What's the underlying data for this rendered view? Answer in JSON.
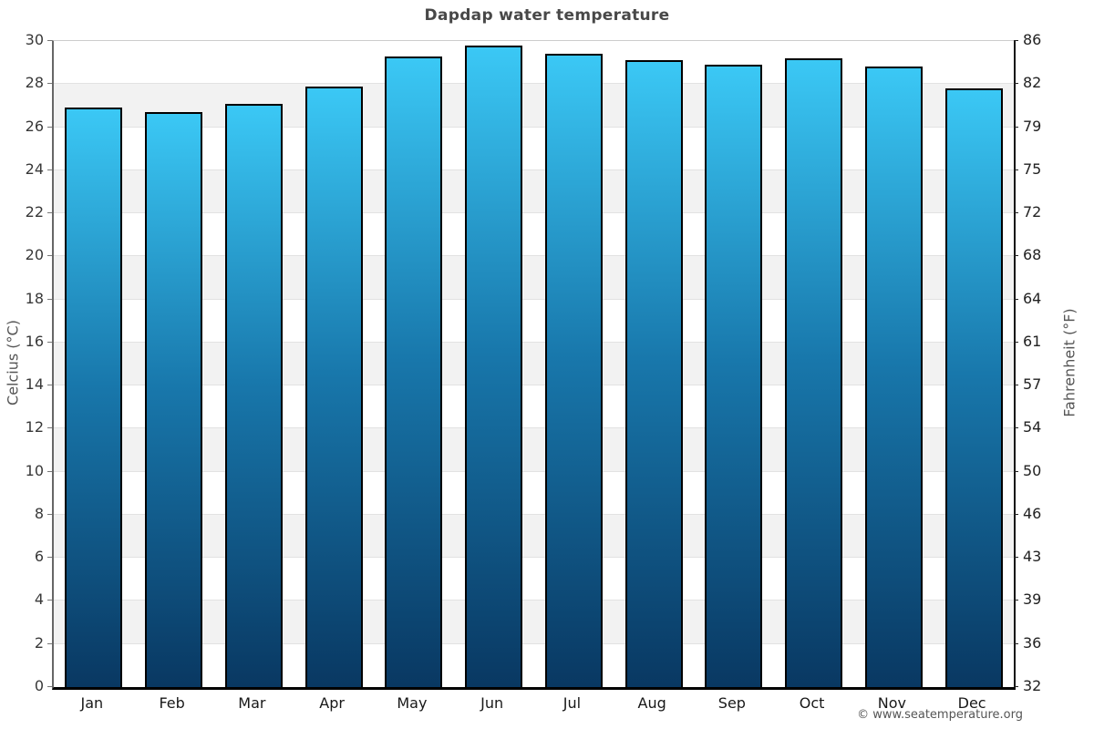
{
  "title": "Dapdap water temperature",
  "footer": {
    "credit": "© www.seatemperature.org"
  },
  "colors": {
    "background": "#ffffff",
    "title_text": "#484848",
    "bar_gradient_top": "#3bc8f5",
    "bar_gradient_mid": "#1877ab",
    "bar_gradient_bottom": "#093862",
    "bar_outline": "#000000",
    "band_gray": "#f2f2f2",
    "band_white": "#ffffff",
    "gridline": "#e2e2e2",
    "tick_label": "#383838",
    "axis_label": "#555555",
    "credit_text": "#555555"
  },
  "chart_data": {
    "type": "bar",
    "title": "Dapdap water temperature",
    "categories": [
      "Jan",
      "Feb",
      "Mar",
      "Apr",
      "May",
      "Jun",
      "Jul",
      "Aug",
      "Sep",
      "Oct",
      "Nov",
      "Dec"
    ],
    "series": [
      {
        "name": "Water temperature (°C)",
        "values": [
          26.9,
          26.7,
          27.1,
          27.9,
          29.3,
          29.8,
          29.4,
          29.1,
          28.9,
          29.2,
          28.8,
          27.8
        ]
      }
    ],
    "xlabel": "",
    "ylabel_left": "Celcius (°C)",
    "ylabel_right": "Fahrenheit (°F)",
    "ylim": [
      0,
      30
    ],
    "ytick_step_celsius": 2,
    "yticks_celsius": [
      0,
      2,
      4,
      6,
      8,
      10,
      12,
      14,
      16,
      18,
      20,
      22,
      24,
      26,
      28,
      30
    ],
    "yticks_fahrenheit": [
      32,
      36,
      39,
      43,
      46,
      50,
      54,
      57,
      61,
      64,
      68,
      72,
      75,
      79,
      82,
      86
    ],
    "grid": "alternating horizontal 2°C bands (white / light gray), thin gridlines at even ticks",
    "legend_position": "none",
    "bar_style": "vertical gradient cyan top to dark navy bottom, black outline"
  }
}
